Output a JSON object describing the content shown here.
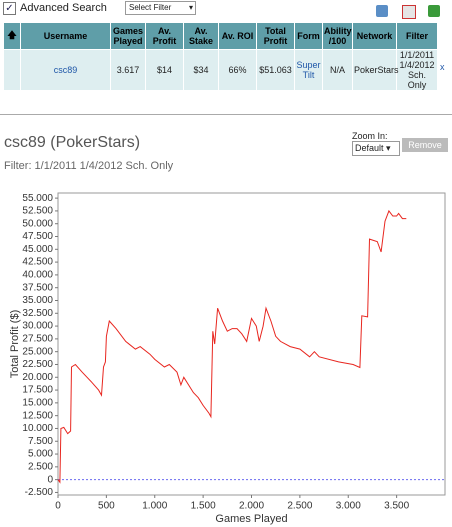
{
  "toolbar": {
    "advanced_search": "Advanced Search",
    "select_filter": "Select Filter"
  },
  "table": {
    "headers": [
      "Username",
      "Games Played",
      "Av. Profit",
      "Av. Stake",
      "Av. ROI",
      "Total Profit",
      "Form",
      "Ability /100",
      "Network",
      "Filter"
    ],
    "rows": [
      [
        "csc89",
        "3.617",
        "$14",
        "$34",
        "66%",
        "$51.063",
        "Super Tilt",
        "N/A",
        "PokerStars",
        "1/1/2011 1/4/2012 Sch. Only"
      ]
    ],
    "remove": "x"
  },
  "profile": {
    "title": "csc89 (PokerStars)",
    "filter": "Filter: 1/1/2011 1/4/2012 Sch. Only"
  },
  "zoom": {
    "label": "Zoom In:",
    "option": "Default",
    "button": "Remove"
  },
  "chart_data": {
    "type": "line",
    "x_label": "Games Played",
    "y_label": "Total Profit ($)",
    "color": "#e8261f",
    "reference_line": 0,
    "reference_color": "#6a6af0",
    "x": [
      0,
      20,
      30,
      60,
      100,
      130,
      140,
      180,
      250,
      350,
      420,
      450,
      470,
      490,
      500,
      530,
      600,
      700,
      800,
      850,
      950,
      1000,
      1100,
      1150,
      1230,
      1270,
      1300,
      1400,
      1450,
      1500,
      1560,
      1580,
      1600,
      1620,
      1650,
      1700,
      1750,
      1800,
      1850,
      1900,
      1950,
      2000,
      2050,
      2080,
      2120,
      2150,
      2200,
      2250,
      2300,
      2400,
      2500,
      2600,
      2650,
      2700,
      2900,
      3050,
      3120,
      3140,
      3200,
      3220,
      3300,
      3340,
      3380,
      3420,
      3460,
      3500,
      3520,
      3560,
      3600
    ],
    "values": [
      0,
      -500,
      10000,
      10200,
      9000,
      9500,
      22000,
      22500,
      21000,
      19000,
      17500,
      16500,
      22000,
      23000,
      28000,
      31000,
      29500,
      27000,
      25500,
      26000,
      24500,
      23500,
      22000,
      22500,
      21000,
      18500,
      20000,
      17000,
      16000,
      14500,
      13000,
      12300,
      29000,
      26500,
      33500,
      31000,
      29000,
      29500,
      29500,
      28500,
      27000,
      31500,
      30000,
      27000,
      30000,
      33500,
      31000,
      28000,
      27000,
      26000,
      25500,
      24000,
      25000,
      24000,
      23000,
      22500,
      21900,
      32000,
      31800,
      47000,
      46500,
      44500,
      50500,
      52500,
      51500,
      51500,
      52000,
      51000,
      51000
    ],
    "xlim": [
      0,
      4000
    ],
    "xticks": [
      0,
      500,
      {
        "value": 1000,
        "label": "1.000"
      },
      {
        "value": 1500,
        "label": "1.500"
      },
      {
        "value": 2000,
        "label": "2.000"
      },
      {
        "value": 2500,
        "label": "2.500"
      },
      {
        "value": 3000,
        "label": "3.000"
      },
      {
        "value": 3500,
        "label": "3.500"
      }
    ],
    "ylim": [
      -3000,
      56000
    ],
    "yticks": [
      {
        "value": -2500,
        "label": "-2.500"
      },
      0,
      {
        "value": 2500,
        "label": "2.500"
      },
      {
        "value": 5000,
        "label": "5.000"
      },
      {
        "value": 7500,
        "label": "7.500"
      },
      {
        "value": 10000,
        "label": "10.000"
      },
      {
        "value": 12500,
        "label": "12.500"
      },
      {
        "value": 15000,
        "label": "15.000"
      },
      {
        "value": 17500,
        "label": "17.500"
      },
      {
        "value": 20000,
        "label": "20.000"
      },
      {
        "value": 22500,
        "label": "22.500"
      },
      {
        "value": 25000,
        "label": "25.000"
      },
      {
        "value": 27500,
        "label": "27.500"
      },
      {
        "value": 30000,
        "label": "30.000"
      },
      {
        "value": 32500,
        "label": "32.500"
      },
      {
        "value": 35000,
        "label": "35.000"
      },
      {
        "value": 37500,
        "label": "37.500"
      },
      {
        "value": 40000,
        "label": "40.000"
      },
      {
        "value": 42500,
        "label": "42.500"
      },
      {
        "value": 45000,
        "label": "45.000"
      },
      {
        "value": 47500,
        "label": "47.500"
      },
      {
        "value": 50000,
        "label": "50.000"
      },
      {
        "value": 52500,
        "label": "52.500"
      },
      {
        "value": 55000,
        "label": "55.000"
      }
    ]
  }
}
